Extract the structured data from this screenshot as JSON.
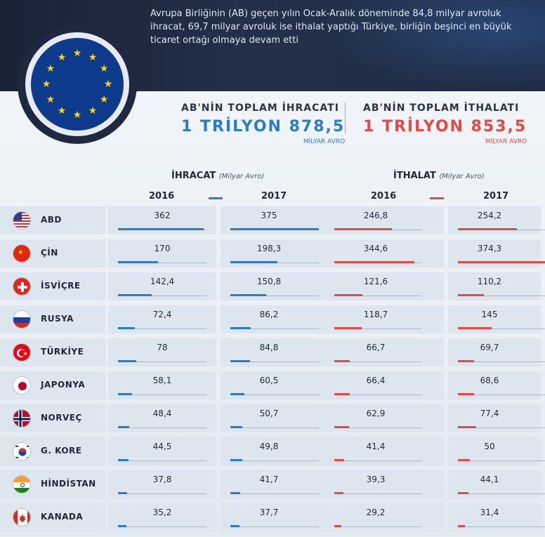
{
  "header": {
    "description": "Avrupa Birliğinin (AB) geçen yılın Ocak-Aralık döneminde 84,8 milyar avroluk ihracat, 69,7 milyar avroluk ise ithalat yaptığı Türkiye, birliğin beşinci en büyük ticaret ortağı olmaya devam etti"
  },
  "totals": {
    "export_label": "AB'NİN TOPLAM İHRACATI",
    "export_value": "1 TRİLYON 878,5",
    "export_unit": "MİLYAR AVRO",
    "import_label": "AB'NİN TOPLAM İTHALATI",
    "import_value": "1 TRİLYON 853,5",
    "import_unit": "MİLYAR AVRO"
  },
  "colors": {
    "export": "#2a7bc8",
    "import": "#e04b46"
  },
  "chart_data": {
    "type": "bar",
    "groups": {
      "export": {
        "title": "İHRACAT",
        "unit": "(Milyar Avro)"
      },
      "import": {
        "title": "İTHALAT",
        "unit": "(Milyar Avro)"
      }
    },
    "years": [
      "2016",
      "2017"
    ],
    "categories": [
      "ABD",
      "ÇİN",
      "İSVİÇRE",
      "RUSYA",
      "TÜRKİYE",
      "JAPONYA",
      "NORVEÇ",
      "G. KORE",
      "HİNDİSTAN",
      "KANADA"
    ],
    "flags": [
      "us-flag-icon",
      "china-flag-icon",
      "switzerland-flag-icon",
      "russia-flag-icon",
      "turkey-flag-icon",
      "japan-flag-icon",
      "norway-flag-icon",
      "south-korea-flag-icon",
      "india-flag-icon",
      "canada-flag-icon"
    ],
    "series": [
      {
        "group": "export",
        "year": "2016",
        "values": [
          362,
          170,
          142.4,
          72.4,
          78,
          58.1,
          48.4,
          44.5,
          37.8,
          35.2
        ],
        "labels": [
          "362",
          "170",
          "142,4",
          "72,4",
          "78",
          "58,1",
          "48,4",
          "44,5",
          "37,8",
          "35,2"
        ]
      },
      {
        "group": "export",
        "year": "2017",
        "values": [
          375,
          198.3,
          150.8,
          86.2,
          84.8,
          60.5,
          50.7,
          49.8,
          41.7,
          37.7
        ],
        "labels": [
          "375",
          "198,3",
          "150,8",
          "86,2",
          "84,8",
          "60,5",
          "50,7",
          "49,8",
          "41,7",
          "37,7"
        ]
      },
      {
        "group": "import",
        "year": "2016",
        "values": [
          246.8,
          344.6,
          121.6,
          118.7,
          66.7,
          66.4,
          62.9,
          41.4,
          39.3,
          29.2
        ],
        "labels": [
          "246,8",
          "344,6",
          "121,6",
          "118,7",
          "66,7",
          "66,4",
          "62,9",
          "41,4",
          "39,3",
          "29,2"
        ]
      },
      {
        "group": "import",
        "year": "2017",
        "values": [
          254.2,
          374.3,
          110.2,
          145,
          69.7,
          68.6,
          77.4,
          50,
          44.1,
          31.4
        ],
        "labels": [
          "254,2",
          "374,3",
          "110,2",
          "145",
          "69,7",
          "68,6",
          "77,4",
          "50",
          "44,1",
          "31,4"
        ]
      }
    ]
  }
}
